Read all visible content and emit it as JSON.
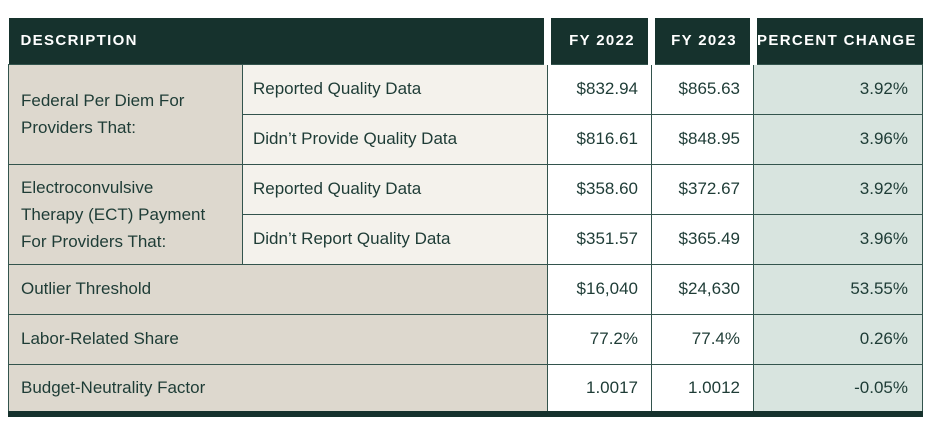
{
  "colors": {
    "dark": "#16322d",
    "ink": "#1e3c36",
    "beige": "#ddd8ce",
    "cream": "#f4f2ec",
    "mint": "#d8e4df",
    "line": "#33544d"
  },
  "table": {
    "header": {
      "description": "DESCRIPTION",
      "fy2022": "FY 2022",
      "fy2023": "FY 2023",
      "percent_change": "PERCENT CHANGE"
    },
    "rows": [
      {
        "group": "Federal Per Diem For Providers That:",
        "sub": "Reported Quality Data",
        "fy2022": "$832.94",
        "fy2023": "$865.63",
        "change": "3.92%"
      },
      {
        "sub": "Didn’t Provide Quality Data",
        "fy2022": "$816.61",
        "fy2023": "$848.95",
        "change": "3.96%"
      },
      {
        "group": "Electroconvulsive Therapy (ECT) Payment For Providers That:",
        "sub": "Reported Quality Data",
        "fy2022": "$358.60",
        "fy2023": "$372.67",
        "change": "3.92%"
      },
      {
        "sub": "Didn’t Report Quality Data",
        "fy2022": "$351.57",
        "fy2023": "$365.49",
        "change": "3.96%"
      },
      {
        "label": "Outlier Threshold",
        "fy2022": "$16,040",
        "fy2023": "$24,630",
        "change": "53.55%"
      },
      {
        "label": "Labor-Related Share",
        "fy2022": "77.2%",
        "fy2023": "77.4%",
        "change": "0.26%"
      },
      {
        "label": "Budget-Neutrality Factor",
        "fy2022": "1.0017",
        "fy2023": "1.0012",
        "change": "-0.05%"
      }
    ]
  },
  "chart_data": {
    "type": "table",
    "title": "",
    "columns": [
      "DESCRIPTION",
      "FY 2022",
      "FY 2023",
      "PERCENT CHANGE"
    ],
    "rows": [
      [
        "Federal Per Diem For Providers That: Reported Quality Data",
        "$832.94",
        "$865.63",
        "3.92%"
      ],
      [
        "Federal Per Diem For Providers That: Didn’t Provide Quality Data",
        "$816.61",
        "$848.95",
        "3.96%"
      ],
      [
        "Electroconvulsive Therapy (ECT) Payment For Providers That: Reported Quality Data",
        "$358.60",
        "$372.67",
        "3.92%"
      ],
      [
        "Electroconvulsive Therapy (ECT) Payment For Providers That: Didn’t Report Quality Data",
        "$351.57",
        "$365.49",
        "3.96%"
      ],
      [
        "Outlier Threshold",
        "$16,040",
        "$24,630",
        "53.55%"
      ],
      [
        "Labor-Related Share",
        "77.2%",
        "77.4%",
        "0.26%"
      ],
      [
        "Budget-Neutrality Factor",
        "1.0017",
        "1.0012",
        "-0.05%"
      ]
    ]
  }
}
